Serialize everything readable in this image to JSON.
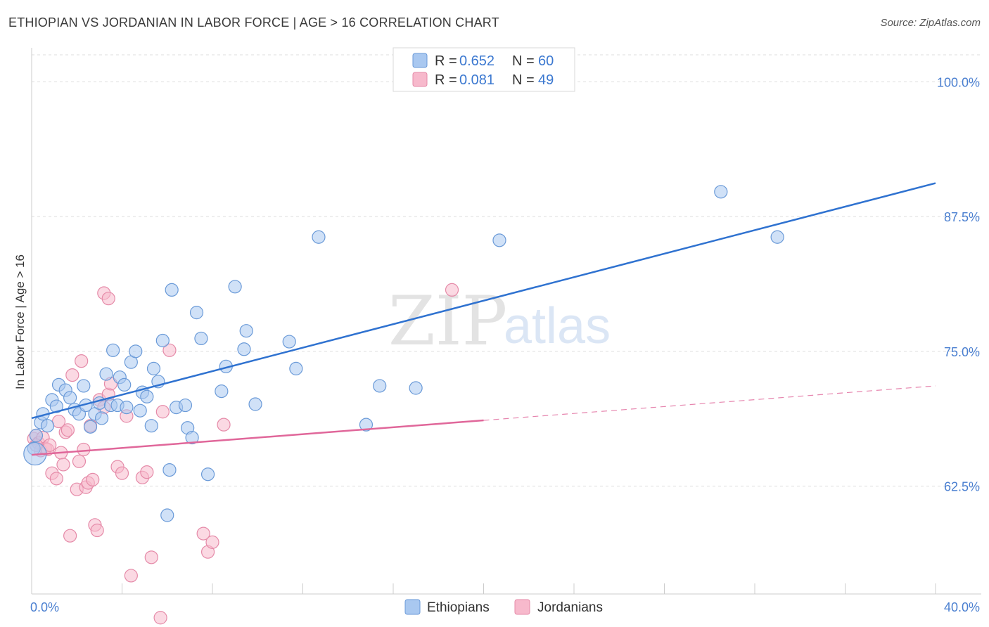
{
  "title": "ETHIOPIAN VS JORDANIAN IN LABOR FORCE | AGE > 16 CORRELATION CHART",
  "source": "Source: ZipAtlas.com",
  "watermark": {
    "zip": "ZIP",
    "atlas": "atlas"
  },
  "colors": {
    "blue_fill": "#a9c8f0",
    "blue_stroke": "#6a9ad8",
    "blue_line": "#2f72d0",
    "pink_fill": "#f7b9cc",
    "pink_stroke": "#e58aa8",
    "pink_line": "#e0679a",
    "grid": "#dddddd",
    "axis_text": "#4a7fd0"
  },
  "chart_data": {
    "type": "scatter",
    "title": "ETHIOPIAN VS JORDANIAN IN LABOR FORCE | AGE > 16 CORRELATION CHART",
    "xlabel": "",
    "ylabel": "In Labor Force | Age > 16",
    "xlim": [
      0,
      40
    ],
    "ylim": [
      52.5,
      102.5
    ],
    "x_tick_labels": [
      "0.0%",
      "40.0%"
    ],
    "y_ticks": [
      62.5,
      75.0,
      87.5,
      100.0
    ],
    "y_tick_labels": [
      "62.5%",
      "75.0%",
      "87.5%",
      "100.0%"
    ],
    "grid": true,
    "legend": {
      "position": "top-center",
      "entries": [
        {
          "r_label": "R =",
          "r_value": "0.652",
          "n_label": "N =",
          "n_value": "60"
        },
        {
          "r_label": "R =",
          "r_value": "0.081",
          "n_label": "N =",
          "n_value": "49"
        }
      ]
    },
    "bottom_legend": [
      "Ethiopians",
      "Jordanians"
    ],
    "series": [
      {
        "name": "Ethiopians",
        "r": 0.652,
        "n": 60,
        "trend": {
          "x0": 0,
          "y0": 68.8,
          "x1": 40,
          "y1": 90.6,
          "dashed_from": null
        },
        "points": [
          [
            0.1,
            66.0
          ],
          [
            0.2,
            67.2
          ],
          [
            0.4,
            68.4
          ],
          [
            0.5,
            69.2
          ],
          [
            0.7,
            68.1
          ],
          [
            0.9,
            70.5
          ],
          [
            1.1,
            69.9
          ],
          [
            1.2,
            71.9
          ],
          [
            1.5,
            71.4
          ],
          [
            1.7,
            70.7
          ],
          [
            1.9,
            69.6
          ],
          [
            2.1,
            69.2
          ],
          [
            2.3,
            71.8
          ],
          [
            2.4,
            70.0
          ],
          [
            2.6,
            68.0
          ],
          [
            2.8,
            69.2
          ],
          [
            3.0,
            70.2
          ],
          [
            3.1,
            68.8
          ],
          [
            3.3,
            72.9
          ],
          [
            3.5,
            70.0
          ],
          [
            3.6,
            75.1
          ],
          [
            3.8,
            70.0
          ],
          [
            3.9,
            72.6
          ],
          [
            4.1,
            71.9
          ],
          [
            4.2,
            69.8
          ],
          [
            4.4,
            74.0
          ],
          [
            4.6,
            75.0
          ],
          [
            4.8,
            69.5
          ],
          [
            4.9,
            71.2
          ],
          [
            5.1,
            70.8
          ],
          [
            5.3,
            68.1
          ],
          [
            5.4,
            73.4
          ],
          [
            5.6,
            72.2
          ],
          [
            5.8,
            76.0
          ],
          [
            6.0,
            59.8
          ],
          [
            6.1,
            64.0
          ],
          [
            6.2,
            80.7
          ],
          [
            6.4,
            69.8
          ],
          [
            6.8,
            70.0
          ],
          [
            6.9,
            67.9
          ],
          [
            7.1,
            67.0
          ],
          [
            7.3,
            78.6
          ],
          [
            7.5,
            76.2
          ],
          [
            7.8,
            63.6
          ],
          [
            8.4,
            71.3
          ],
          [
            8.6,
            73.6
          ],
          [
            9.0,
            81.0
          ],
          [
            9.4,
            75.2
          ],
          [
            9.5,
            76.9
          ],
          [
            9.9,
            70.1
          ],
          [
            11.4,
            75.9
          ],
          [
            11.7,
            73.4
          ],
          [
            12.7,
            85.6
          ],
          [
            14.8,
            68.2
          ],
          [
            15.4,
            71.8
          ],
          [
            17.0,
            71.6
          ],
          [
            20.7,
            85.3
          ],
          [
            30.5,
            89.8
          ],
          [
            33.0,
            85.6
          ],
          [
            0.15,
            65.5
          ]
        ]
      },
      {
        "name": "Jordanians",
        "r": 0.081,
        "n": 49,
        "trend": {
          "x0": 0,
          "y0": 65.4,
          "x1": 40,
          "y1": 71.8,
          "dashed_from": 20
        },
        "points": [
          [
            0.1,
            66.9
          ],
          [
            0.2,
            67.2
          ],
          [
            0.3,
            66.5
          ],
          [
            0.4,
            65.8
          ],
          [
            0.5,
            67.0
          ],
          [
            0.6,
            66.0
          ],
          [
            0.7,
            65.9
          ],
          [
            0.8,
            66.3
          ],
          [
            0.9,
            63.7
          ],
          [
            1.1,
            63.2
          ],
          [
            1.2,
            68.5
          ],
          [
            1.3,
            65.6
          ],
          [
            1.4,
            64.5
          ],
          [
            1.5,
            67.5
          ],
          [
            1.6,
            67.7
          ],
          [
            1.7,
            57.9
          ],
          [
            1.8,
            72.8
          ],
          [
            2.0,
            62.2
          ],
          [
            2.1,
            64.8
          ],
          [
            2.2,
            74.1
          ],
          [
            2.3,
            65.9
          ],
          [
            2.4,
            62.4
          ],
          [
            2.5,
            62.8
          ],
          [
            2.6,
            68.1
          ],
          [
            2.7,
            63.1
          ],
          [
            2.8,
            58.9
          ],
          [
            2.9,
            58.4
          ],
          [
            3.0,
            70.5
          ],
          [
            3.2,
            69.8
          ],
          [
            3.4,
            71.0
          ],
          [
            3.2,
            80.4
          ],
          [
            3.4,
            79.9
          ],
          [
            3.5,
            72.0
          ],
          [
            3.8,
            64.3
          ],
          [
            4.0,
            63.7
          ],
          [
            4.2,
            69.0
          ],
          [
            4.4,
            54.2
          ],
          [
            4.9,
            63.3
          ],
          [
            5.1,
            63.8
          ],
          [
            5.3,
            55.9
          ],
          [
            5.8,
            69.4
          ],
          [
            5.7,
            50.3
          ],
          [
            6.1,
            75.1
          ],
          [
            7.6,
            58.1
          ],
          [
            7.8,
            56.4
          ],
          [
            8.0,
            57.3
          ],
          [
            8.5,
            68.2
          ],
          [
            18.6,
            80.7
          ],
          [
            0.2,
            66.3
          ]
        ]
      }
    ]
  }
}
